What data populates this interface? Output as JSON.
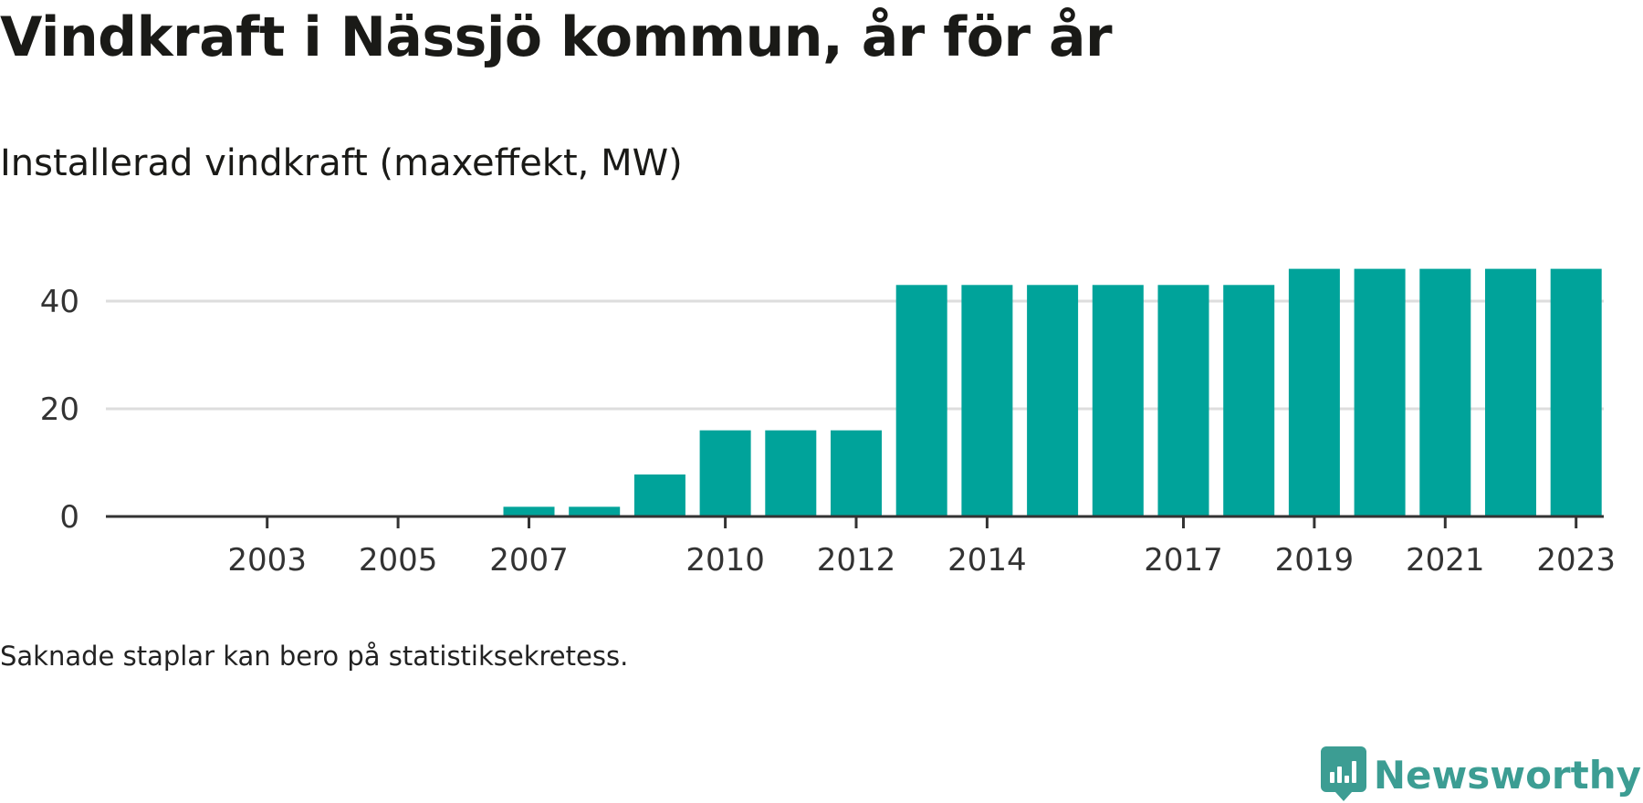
{
  "header": {
    "title": "Vindkraft i Nässjö kommun, år för år",
    "subtitle": "Installerad vindkraft (maxeffekt, MW)"
  },
  "footer": {
    "note": "Saknade staplar kan bero på statistiksekretess.",
    "brand": "Newsworthy"
  },
  "colors": {
    "bar": "#00a39a",
    "grid": "#dddddd",
    "axis": "#333333",
    "brand": "#3c9d93"
  },
  "chart_data": {
    "type": "bar",
    "categories": [
      "2002",
      "2003",
      "2004",
      "2005",
      "2006",
      "2007",
      "2008",
      "2009",
      "2010",
      "2011",
      "2012",
      "2013",
      "2014",
      "2015",
      "2016",
      "2017",
      "2018",
      "2019",
      "2020",
      "2021",
      "2022",
      "2023"
    ],
    "values": [
      0,
      0,
      0,
      0,
      0,
      1.8,
      1.8,
      7.8,
      16,
      16,
      16,
      43,
      43,
      43,
      43,
      43,
      43,
      46,
      46,
      46,
      46,
      46
    ],
    "x_tick_labels": [
      "2003",
      "2005",
      "2007",
      "2010",
      "2012",
      "2014",
      "2017",
      "2019",
      "2021",
      "2023"
    ],
    "y_ticks": [
      0,
      20,
      40
    ],
    "ylim": [
      0,
      46
    ],
    "grid": true
  }
}
